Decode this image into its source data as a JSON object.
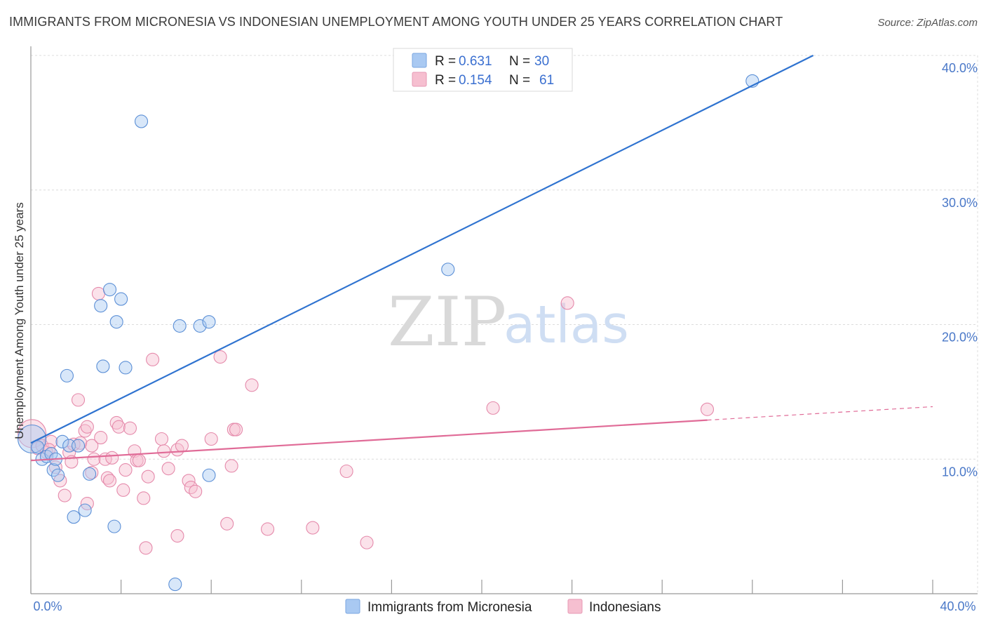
{
  "title": "IMMIGRANTS FROM MICRONESIA VS INDONESIAN UNEMPLOYMENT AMONG YOUTH UNDER 25 YEARS CORRELATION CHART",
  "source": "Source: ZipAtlas.com",
  "watermark": {
    "zip": "ZIP",
    "atlas": "atlas"
  },
  "legend_top": [
    {
      "r_label": "R =",
      "r_value": "0.631",
      "n_label": "N =",
      "n_value": "30",
      "color": "#a9c9f2"
    },
    {
      "r_label": "R =",
      "r_value": "0.154",
      "n_label": "N =",
      "n_value": "61",
      "color": "#f6bfd0"
    }
  ],
  "legend_bottom": [
    {
      "label": "Immigrants from Micronesia",
      "color": "#a9c9f2"
    },
    {
      "label": "Indonesians",
      "color": "#f6bfd0"
    }
  ],
  "colors": {
    "blue_line": "#2f73d0",
    "pink_line": "#e06b97",
    "blue_stroke": "#5b8fd6",
    "pink_stroke": "#e58aab"
  },
  "chart_data": {
    "type": "scatter",
    "xlabel": "",
    "ylabel": "Unemployment Among Youth under 25 years",
    "xlim": [
      0,
      40
    ],
    "ylim": [
      0,
      40
    ],
    "x_tick_labels": [
      {
        "v": 0,
        "t": "0.0%"
      },
      {
        "v": 40,
        "t": "40.0%"
      }
    ],
    "y_tick_labels": [
      {
        "v": 10,
        "t": "10.0%"
      },
      {
        "v": 20,
        "t": "20.0%"
      },
      {
        "v": 30,
        "t": "30.0%"
      },
      {
        "v": 40,
        "t": "40.0%"
      }
    ],
    "grid": true,
    "series": [
      {
        "name": "Immigrants from Micronesia",
        "points": [
          [
            0.05,
            11.5
          ],
          [
            0.3,
            10.9
          ],
          [
            0.5,
            10.0
          ],
          [
            0.7,
            10.2
          ],
          [
            0.9,
            10.4
          ],
          [
            1.0,
            9.2
          ],
          [
            1.1,
            10.0
          ],
          [
            1.2,
            8.8
          ],
          [
            1.4,
            11.3
          ],
          [
            1.6,
            16.2
          ],
          [
            1.7,
            11.0
          ],
          [
            1.9,
            5.7
          ],
          [
            2.1,
            11.0
          ],
          [
            2.4,
            6.2
          ],
          [
            2.6,
            8.9
          ],
          [
            3.1,
            21.4
          ],
          [
            3.2,
            16.9
          ],
          [
            3.5,
            22.6
          ],
          [
            3.7,
            5.0
          ],
          [
            3.8,
            20.2
          ],
          [
            4.0,
            21.9
          ],
          [
            4.2,
            16.8
          ],
          [
            4.9,
            35.1
          ],
          [
            6.4,
            0.7
          ],
          [
            6.6,
            19.9
          ],
          [
            7.5,
            19.9
          ],
          [
            7.9,
            20.2
          ],
          [
            7.9,
            8.8
          ],
          [
            18.5,
            24.1
          ],
          [
            32.0,
            38.1
          ]
        ],
        "trend": {
          "x": [
            0,
            34.7
          ],
          "y": [
            11.2,
            40.0
          ]
        }
      },
      {
        "name": "Indonesians",
        "points": [
          [
            0.05,
            11.9
          ],
          [
            0.3,
            10.8
          ],
          [
            0.5,
            11.0
          ],
          [
            0.7,
            10.5
          ],
          [
            0.9,
            11.3
          ],
          [
            1.1,
            9.4
          ],
          [
            1.3,
            8.4
          ],
          [
            1.5,
            7.3
          ],
          [
            1.7,
            10.5
          ],
          [
            1.8,
            9.8
          ],
          [
            1.9,
            11.1
          ],
          [
            2.1,
            14.4
          ],
          [
            2.2,
            11.2
          ],
          [
            2.4,
            12.1
          ],
          [
            2.5,
            12.4
          ],
          [
            2.5,
            6.7
          ],
          [
            2.7,
            9.0
          ],
          [
            2.7,
            11.0
          ],
          [
            2.8,
            10.0
          ],
          [
            3.0,
            22.3
          ],
          [
            3.1,
            11.6
          ],
          [
            3.3,
            10.0
          ],
          [
            3.4,
            8.6
          ],
          [
            3.5,
            8.4
          ],
          [
            3.6,
            10.1
          ],
          [
            3.8,
            12.7
          ],
          [
            3.9,
            12.4
          ],
          [
            4.1,
            7.7
          ],
          [
            4.2,
            9.2
          ],
          [
            4.4,
            12.3
          ],
          [
            4.6,
            10.6
          ],
          [
            4.7,
            9.9
          ],
          [
            4.8,
            9.9
          ],
          [
            5.1,
            3.4
          ],
          [
            5.0,
            7.1
          ],
          [
            5.2,
            8.7
          ],
          [
            5.4,
            17.4
          ],
          [
            5.8,
            11.5
          ],
          [
            5.9,
            10.6
          ],
          [
            6.1,
            9.3
          ],
          [
            6.5,
            10.7
          ],
          [
            6.5,
            4.3
          ],
          [
            6.7,
            11.0
          ],
          [
            7.0,
            8.4
          ],
          [
            7.1,
            7.9
          ],
          [
            7.3,
            7.6
          ],
          [
            8.0,
            11.5
          ],
          [
            8.4,
            17.6
          ],
          [
            8.7,
            5.2
          ],
          [
            8.9,
            9.5
          ],
          [
            9.0,
            12.2
          ],
          [
            9.1,
            12.2
          ],
          [
            9.8,
            15.5
          ],
          [
            10.5,
            4.8
          ],
          [
            12.5,
            4.9
          ],
          [
            14.0,
            9.1
          ],
          [
            14.9,
            3.8
          ],
          [
            20.5,
            13.8
          ],
          [
            23.8,
            21.6
          ],
          [
            30.0,
            13.7
          ],
          [
            0.8,
            10.7
          ]
        ],
        "trend": {
          "x": [
            0,
            30.0
          ],
          "y": [
            9.9,
            12.9
          ]
        },
        "trend_extension": {
          "x": [
            30.0,
            40.0
          ],
          "y": [
            12.9,
            13.9
          ]
        }
      }
    ]
  },
  "axis": {
    "y_label": "Unemployment Among Youth under 25 years"
  }
}
